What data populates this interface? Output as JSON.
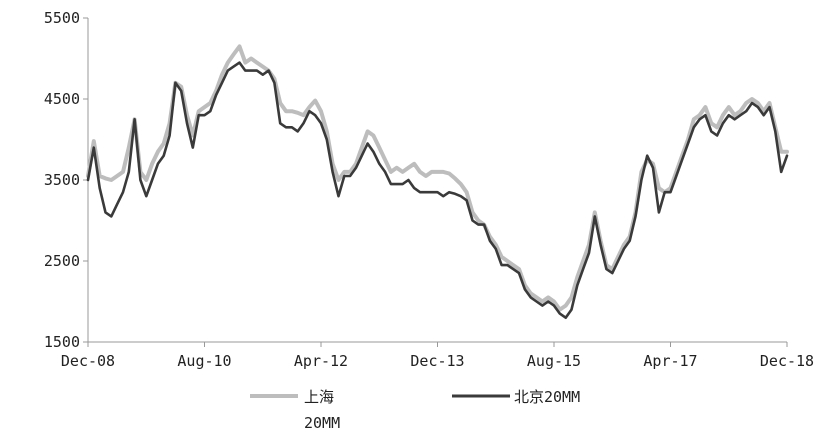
{
  "chart_data": {
    "type": "line",
    "title": "",
    "xlabel": "",
    "ylabel": "",
    "ylim": [
      1500,
      5500
    ],
    "yticks": [
      "5500",
      "4500",
      "3500",
      "2500",
      "1500"
    ],
    "xtick_labels": [
      "Dec-08",
      "Aug-10",
      "Apr-12",
      "Dec-13",
      "Aug-15",
      "Apr-17",
      "Dec-18"
    ],
    "grid": false,
    "legend_position": "bottom",
    "x_start": "2008-12",
    "x_end": "2018-12",
    "series": [
      {
        "name": "上海\n20MM",
        "color": "#bdbdbd",
        "points": [
          [
            "2008-12",
            3550
          ],
          [
            "2009-01",
            3980
          ],
          [
            "2009-02",
            3550
          ],
          [
            "2009-03",
            3520
          ],
          [
            "2009-04",
            3500
          ],
          [
            "2009-05",
            3550
          ],
          [
            "2009-06",
            3600
          ],
          [
            "2009-07",
            3900
          ],
          [
            "2009-08",
            4250
          ],
          [
            "2009-09",
            3600
          ],
          [
            "2009-10",
            3500
          ],
          [
            "2009-11",
            3700
          ],
          [
            "2009-12",
            3850
          ],
          [
            "2010-01",
            3950
          ],
          [
            "2010-02",
            4200
          ],
          [
            "2010-03",
            4700
          ],
          [
            "2010-04",
            4650
          ],
          [
            "2010-05",
            4300
          ],
          [
            "2010-06",
            4050
          ],
          [
            "2010-07",
            4350
          ],
          [
            "2010-08",
            4400
          ],
          [
            "2010-09",
            4450
          ],
          [
            "2010-10",
            4600
          ],
          [
            "2010-11",
            4800
          ],
          [
            "2010-12",
            4950
          ],
          [
            "2011-01",
            5050
          ],
          [
            "2011-02",
            5150
          ],
          [
            "2011-03",
            4950
          ],
          [
            "2011-04",
            5000
          ],
          [
            "2011-05",
            4950
          ],
          [
            "2011-06",
            4900
          ],
          [
            "2011-07",
            4850
          ],
          [
            "2011-08",
            4750
          ],
          [
            "2011-09",
            4450
          ],
          [
            "2011-10",
            4350
          ],
          [
            "2011-11",
            4350
          ],
          [
            "2011-12",
            4330
          ],
          [
            "2012-01",
            4300
          ],
          [
            "2012-02",
            4400
          ],
          [
            "2012-03",
            4480
          ],
          [
            "2012-04",
            4350
          ],
          [
            "2012-05",
            4100
          ],
          [
            "2012-06",
            3700
          ],
          [
            "2012-07",
            3500
          ],
          [
            "2012-08",
            3600
          ],
          [
            "2012-09",
            3600
          ],
          [
            "2012-10",
            3700
          ],
          [
            "2012-11",
            3900
          ],
          [
            "2012-12",
            4100
          ],
          [
            "2013-01",
            4050
          ],
          [
            "2013-02",
            3900
          ],
          [
            "2013-03",
            3750
          ],
          [
            "2013-04",
            3600
          ],
          [
            "2013-05",
            3650
          ],
          [
            "2013-06",
            3600
          ],
          [
            "2013-07",
            3650
          ],
          [
            "2013-08",
            3700
          ],
          [
            "2013-09",
            3600
          ],
          [
            "2013-10",
            3550
          ],
          [
            "2013-11",
            3600
          ],
          [
            "2013-12",
            3600
          ],
          [
            "2014-01",
            3600
          ],
          [
            "2014-02",
            3580
          ],
          [
            "2014-03",
            3520
          ],
          [
            "2014-04",
            3450
          ],
          [
            "2014-05",
            3350
          ],
          [
            "2014-06",
            3100
          ],
          [
            "2014-07",
            3000
          ],
          [
            "2014-08",
            2950
          ],
          [
            "2014-09",
            2800
          ],
          [
            "2014-10",
            2700
          ],
          [
            "2014-11",
            2550
          ],
          [
            "2014-12",
            2500
          ],
          [
            "2015-01",
            2450
          ],
          [
            "2015-02",
            2400
          ],
          [
            "2015-03",
            2200
          ],
          [
            "2015-04",
            2100
          ],
          [
            "2015-05",
            2050
          ],
          [
            "2015-06",
            2000
          ],
          [
            "2015-07",
            2050
          ],
          [
            "2015-08",
            2000
          ],
          [
            "2015-09",
            1900
          ],
          [
            "2015-10",
            1950
          ],
          [
            "2015-11",
            2050
          ],
          [
            "2015-12",
            2300
          ],
          [
            "2016-01",
            2500
          ],
          [
            "2016-02",
            2700
          ],
          [
            "2016-03",
            3100
          ],
          [
            "2016-04",
            2750
          ],
          [
            "2016-05",
            2450
          ],
          [
            "2016-06",
            2400
          ],
          [
            "2016-07",
            2550
          ],
          [
            "2016-08",
            2700
          ],
          [
            "2016-09",
            2800
          ],
          [
            "2016-10",
            3100
          ],
          [
            "2016-11",
            3600
          ],
          [
            "2016-12",
            3750
          ],
          [
            "2017-01",
            3700
          ],
          [
            "2017-02",
            3400
          ],
          [
            "2017-03",
            3350
          ],
          [
            "2017-04",
            3400
          ],
          [
            "2017-05",
            3600
          ],
          [
            "2017-06",
            3800
          ],
          [
            "2017-07",
            4000
          ],
          [
            "2017-08",
            4250
          ],
          [
            "2017-09",
            4300
          ],
          [
            "2017-10",
            4400
          ],
          [
            "2017-11",
            4200
          ],
          [
            "2017-12",
            4150
          ],
          [
            "2018-01",
            4300
          ],
          [
            "2018-02",
            4400
          ],
          [
            "2018-03",
            4300
          ],
          [
            "2018-04",
            4350
          ],
          [
            "2018-05",
            4450
          ],
          [
            "2018-06",
            4500
          ],
          [
            "2018-07",
            4450
          ],
          [
            "2018-08",
            4350
          ],
          [
            "2018-09",
            4450
          ],
          [
            "2018-10",
            4150
          ],
          [
            "2018-11",
            3850
          ],
          [
            "2018-12",
            3850
          ]
        ]
      },
      {
        "name": "北京20MM",
        "color": "#3a3a3a",
        "points": [
          [
            "2008-12",
            3500
          ],
          [
            "2009-01",
            3900
          ],
          [
            "2009-02",
            3400
          ],
          [
            "2009-03",
            3100
          ],
          [
            "2009-04",
            3050
          ],
          [
            "2009-05",
            3200
          ],
          [
            "2009-06",
            3350
          ],
          [
            "2009-07",
            3600
          ],
          [
            "2009-08",
            4250
          ],
          [
            "2009-09",
            3500
          ],
          [
            "2009-10",
            3300
          ],
          [
            "2009-11",
            3500
          ],
          [
            "2009-12",
            3700
          ],
          [
            "2010-01",
            3800
          ],
          [
            "2010-02",
            4050
          ],
          [
            "2010-03",
            4700
          ],
          [
            "2010-04",
            4600
          ],
          [
            "2010-05",
            4200
          ],
          [
            "2010-06",
            3900
          ],
          [
            "2010-07",
            4300
          ],
          [
            "2010-08",
            4300
          ],
          [
            "2010-09",
            4350
          ],
          [
            "2010-10",
            4550
          ],
          [
            "2010-11",
            4700
          ],
          [
            "2010-12",
            4850
          ],
          [
            "2011-01",
            4900
          ],
          [
            "2011-02",
            4950
          ],
          [
            "2011-03",
            4850
          ],
          [
            "2011-04",
            4850
          ],
          [
            "2011-05",
            4850
          ],
          [
            "2011-06",
            4800
          ],
          [
            "2011-07",
            4850
          ],
          [
            "2011-08",
            4700
          ],
          [
            "2011-09",
            4200
          ],
          [
            "2011-10",
            4150
          ],
          [
            "2011-11",
            4150
          ],
          [
            "2011-12",
            4100
          ],
          [
            "2012-01",
            4200
          ],
          [
            "2012-02",
            4350
          ],
          [
            "2012-03",
            4300
          ],
          [
            "2012-04",
            4200
          ],
          [
            "2012-05",
            4000
          ],
          [
            "2012-06",
            3600
          ],
          [
            "2012-07",
            3300
          ],
          [
            "2012-08",
            3550
          ],
          [
            "2012-09",
            3550
          ],
          [
            "2012-10",
            3650
          ],
          [
            "2012-11",
            3800
          ],
          [
            "2012-12",
            3950
          ],
          [
            "2013-01",
            3850
          ],
          [
            "2013-02",
            3700
          ],
          [
            "2013-03",
            3600
          ],
          [
            "2013-04",
            3450
          ],
          [
            "2013-05",
            3450
          ],
          [
            "2013-06",
            3450
          ],
          [
            "2013-07",
            3500
          ],
          [
            "2013-08",
            3400
          ],
          [
            "2013-09",
            3350
          ],
          [
            "2013-10",
            3350
          ],
          [
            "2013-11",
            3350
          ],
          [
            "2013-12",
            3350
          ],
          [
            "2014-01",
            3300
          ],
          [
            "2014-02",
            3350
          ],
          [
            "2014-03",
            3330
          ],
          [
            "2014-04",
            3300
          ],
          [
            "2014-05",
            3250
          ],
          [
            "2014-06",
            3000
          ],
          [
            "2014-07",
            2950
          ],
          [
            "2014-08",
            2950
          ],
          [
            "2014-09",
            2750
          ],
          [
            "2014-10",
            2650
          ],
          [
            "2014-11",
            2450
          ],
          [
            "2014-12",
            2450
          ],
          [
            "2015-01",
            2400
          ],
          [
            "2015-02",
            2350
          ],
          [
            "2015-03",
            2150
          ],
          [
            "2015-04",
            2050
          ],
          [
            "2015-05",
            2000
          ],
          [
            "2015-06",
            1950
          ],
          [
            "2015-07",
            2000
          ],
          [
            "2015-08",
            1950
          ],
          [
            "2015-09",
            1850
          ],
          [
            "2015-10",
            1800
          ],
          [
            "2015-11",
            1900
          ],
          [
            "2015-12",
            2200
          ],
          [
            "2016-01",
            2400
          ],
          [
            "2016-02",
            2600
          ],
          [
            "2016-03",
            3050
          ],
          [
            "2016-04",
            2700
          ],
          [
            "2016-05",
            2400
          ],
          [
            "2016-06",
            2350
          ],
          [
            "2016-07",
            2500
          ],
          [
            "2016-08",
            2650
          ],
          [
            "2016-09",
            2750
          ],
          [
            "2016-10",
            3050
          ],
          [
            "2016-11",
            3500
          ],
          [
            "2016-12",
            3800
          ],
          [
            "2017-01",
            3650
          ],
          [
            "2017-02",
            3100
          ],
          [
            "2017-03",
            3350
          ],
          [
            "2017-04",
            3350
          ],
          [
            "2017-05",
            3550
          ],
          [
            "2017-06",
            3750
          ],
          [
            "2017-07",
            3950
          ],
          [
            "2017-08",
            4150
          ],
          [
            "2017-09",
            4250
          ],
          [
            "2017-10",
            4300
          ],
          [
            "2017-11",
            4100
          ],
          [
            "2017-12",
            4050
          ],
          [
            "2018-01",
            4200
          ],
          [
            "2018-02",
            4300
          ],
          [
            "2018-03",
            4250
          ],
          [
            "2018-04",
            4300
          ],
          [
            "2018-05",
            4350
          ],
          [
            "2018-06",
            4450
          ],
          [
            "2018-07",
            4400
          ],
          [
            "2018-08",
            4300
          ],
          [
            "2018-09",
            4400
          ],
          [
            "2018-10",
            4100
          ],
          [
            "2018-11",
            3600
          ],
          [
            "2018-12",
            3800
          ]
        ]
      }
    ]
  }
}
